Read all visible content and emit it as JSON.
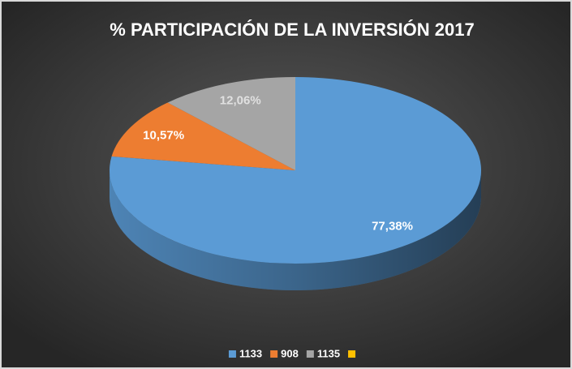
{
  "chart_data": {
    "type": "pie3d",
    "title": "% PARTICIPACIÓN  DE LA INVERSIÓN  2017",
    "categories": [
      "1133",
      "908",
      "1135",
      null
    ],
    "values": [
      77.38,
      10.57,
      12.06,
      0
    ],
    "value_labels": [
      "77,38%",
      "10,57%",
      "12,06%",
      null
    ],
    "colors": [
      "#5b9bd5",
      "#ed7d31",
      "#a5a5a5",
      "#ffc000"
    ],
    "legend": "bottom"
  }
}
